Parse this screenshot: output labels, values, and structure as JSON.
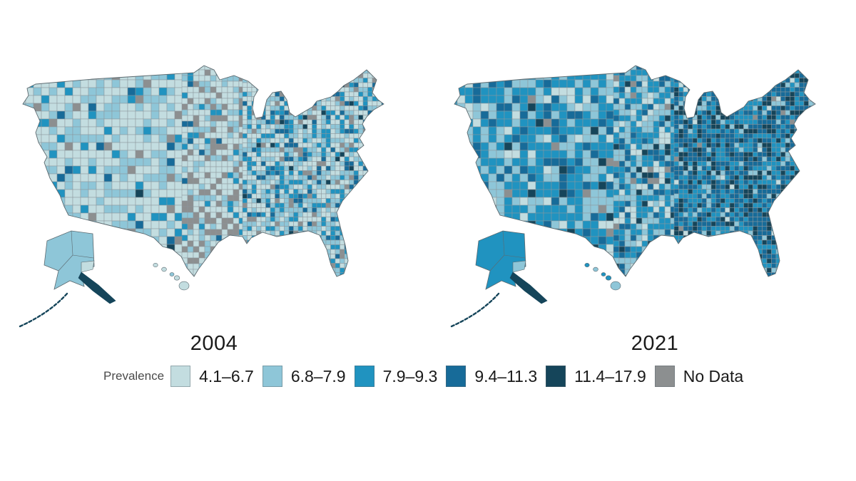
{
  "figure": {
    "maps": [
      {
        "id": "map-2004",
        "year": "2004",
        "profile": "light"
      },
      {
        "id": "map-2021",
        "year": "2021",
        "profile": "dark"
      }
    ],
    "legend": {
      "title": "Prevalence",
      "classes": [
        {
          "label": "4.1–6.7",
          "color": "#c3dde0"
        },
        {
          "label": "6.8–7.9",
          "color": "#8ec6d8"
        },
        {
          "label": "7.9–9.3",
          "color": "#2093c0"
        },
        {
          "label": "9.4–11.3",
          "color": "#176b99"
        },
        {
          "label": "11.4–17.9",
          "color": "#15455a"
        },
        {
          "label": "No Data",
          "color": "#8c8f90"
        }
      ]
    },
    "colors": {
      "county_border": "#8b969b",
      "nation_outline": "#5c6a70",
      "text": "#1a1a1a",
      "background": "#ffffff"
    }
  }
}
